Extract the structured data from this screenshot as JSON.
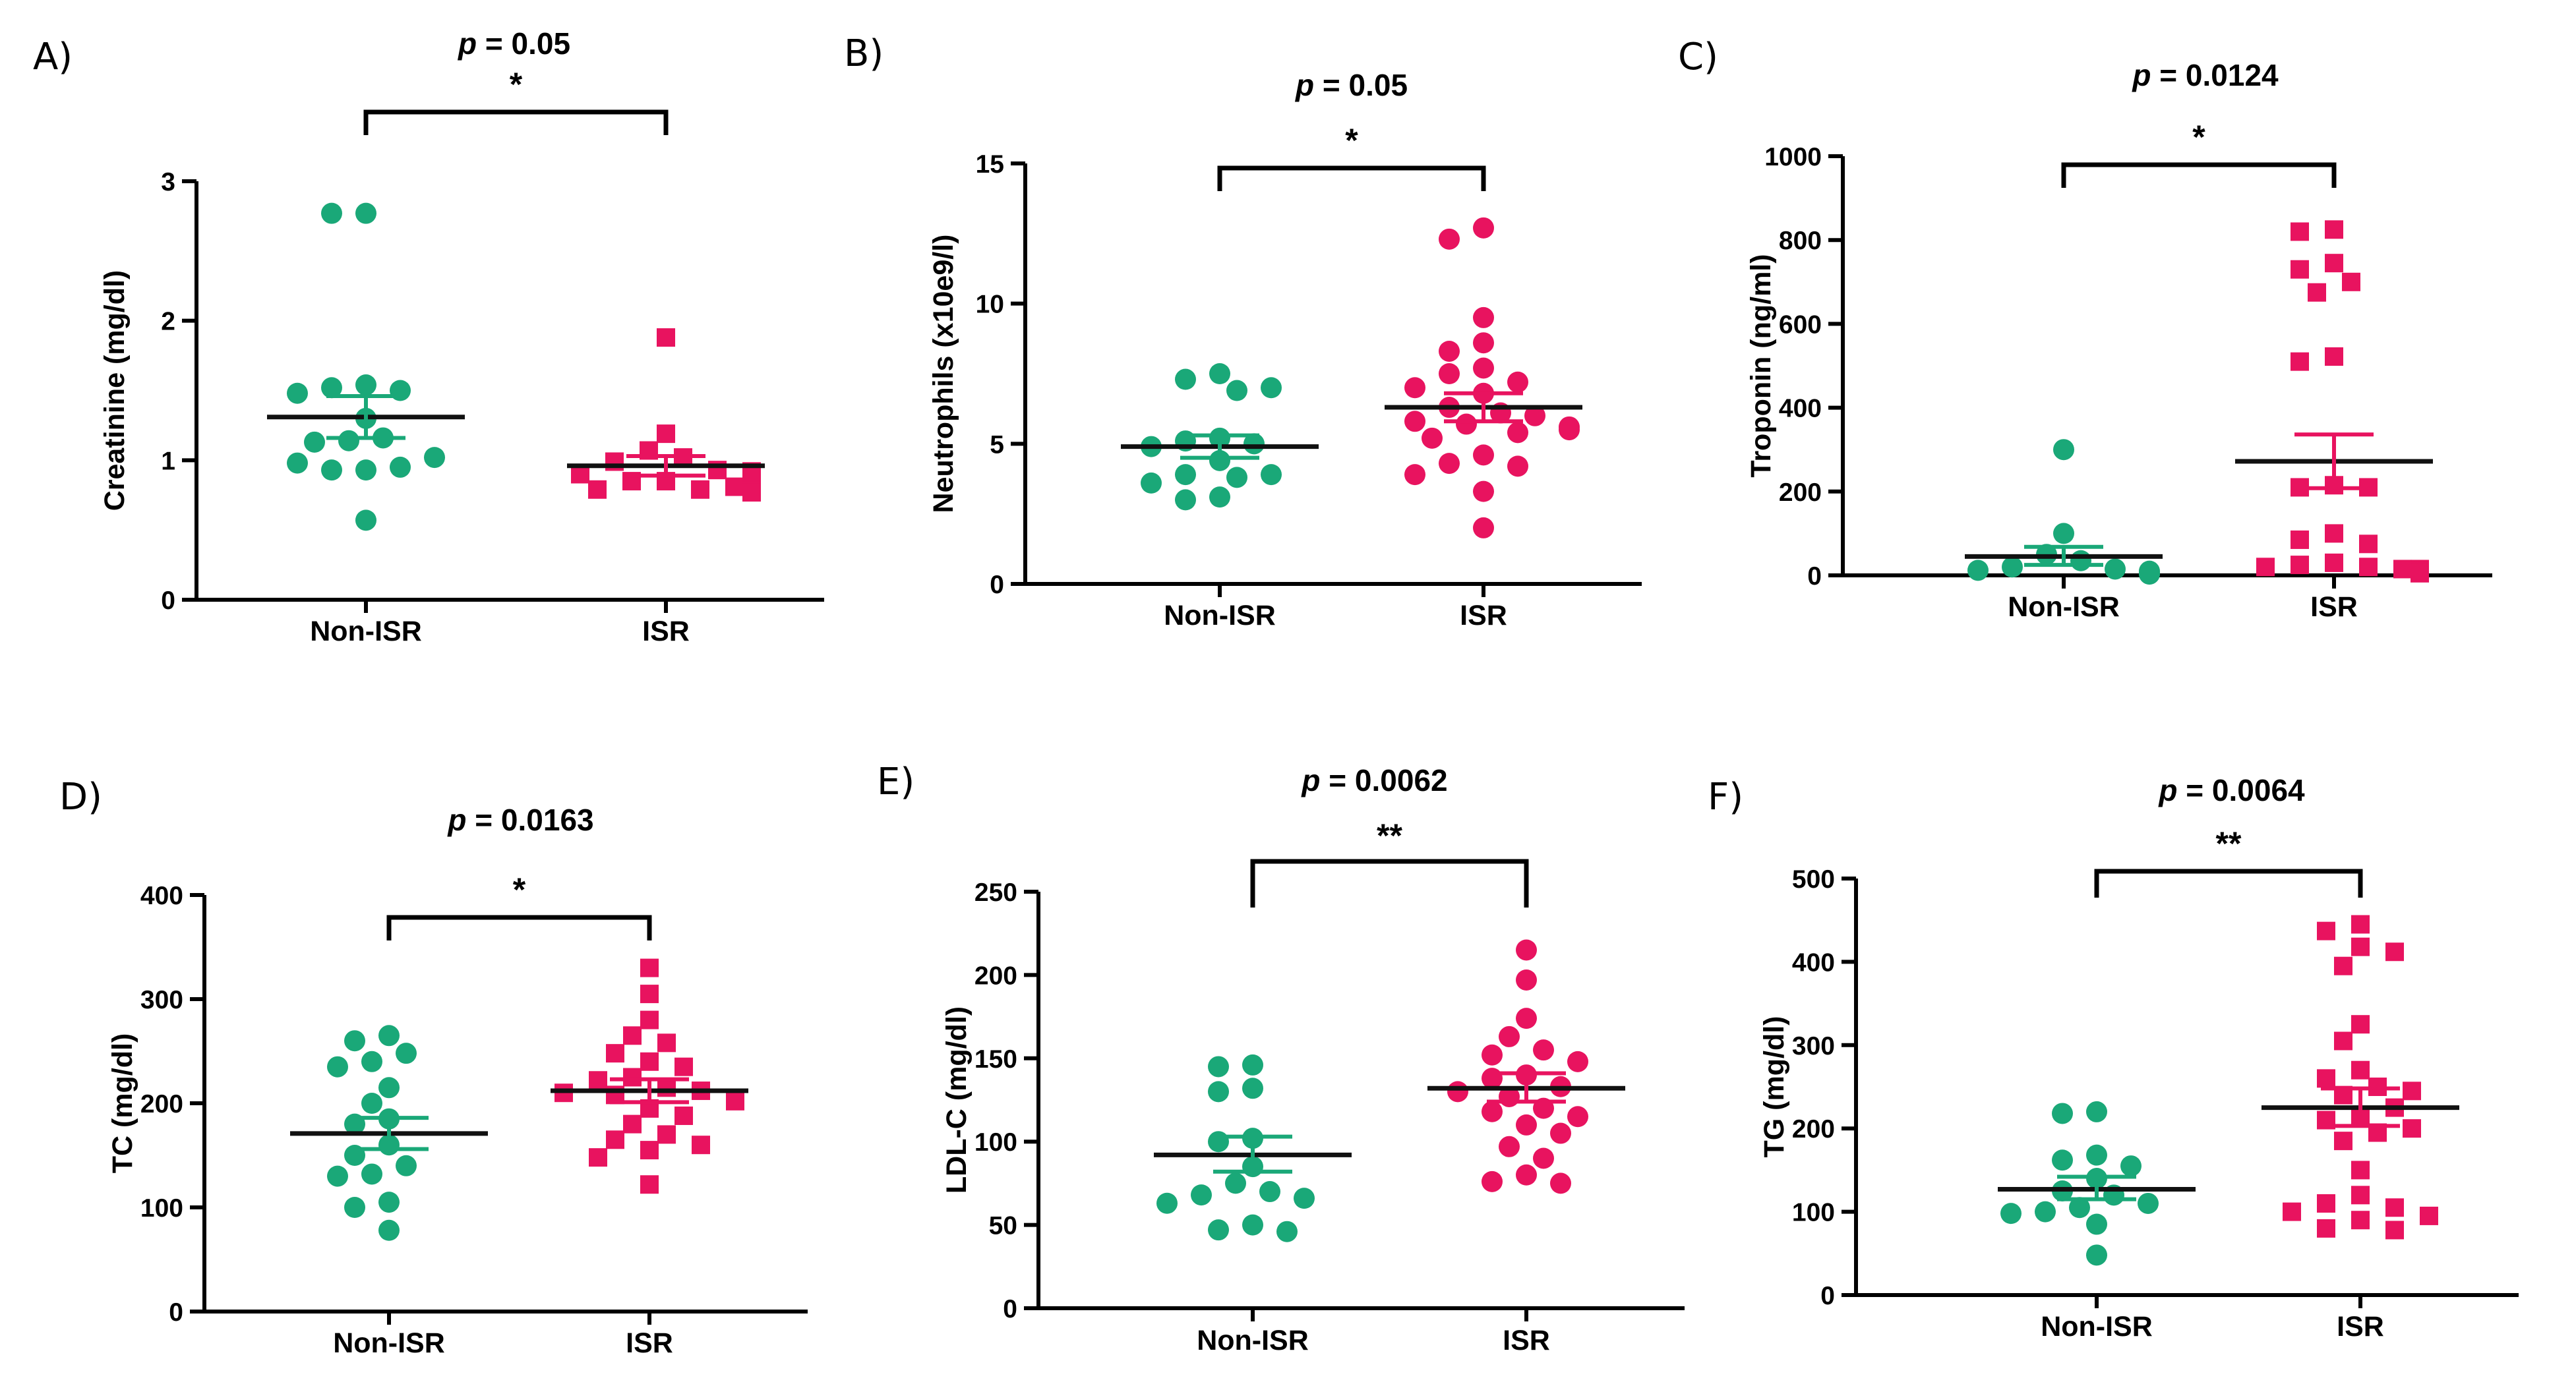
{
  "figure": {
    "colors": {
      "non_isr": "#1aa878",
      "isr": "#e8135f",
      "axis": "#000000"
    }
  },
  "chart_data": [
    {
      "panel": "A)",
      "type": "scatter",
      "title": "p = 0.05",
      "p_prefix": "p",
      "p_value_text": " = 0.05",
      "significance": "*",
      "ylabel": "Creatinine (mg/dl)",
      "xlabel": "",
      "categories": [
        "Non-ISR",
        "ISR"
      ],
      "ylim": [
        0,
        3
      ],
      "yticks": [
        0,
        1,
        2,
        3
      ],
      "ytick_labels": [
        "0",
        "1",
        "2",
        "3"
      ],
      "series": [
        {
          "name": "Non-ISR",
          "marker": "circle",
          "color": "#1aa878",
          "mean": 1.31,
          "sem": [
            1.16,
            1.46
          ],
          "values": [
            2.77,
            2.77,
            1.54,
            1.52,
            1.5,
            1.48,
            1.3,
            1.14,
            1.16,
            1.13,
            0.93,
            0.93,
            0.95,
            0.98,
            1.02,
            0.57
          ]
        },
        {
          "name": "ISR",
          "marker": "square",
          "color": "#e8135f",
          "mean": 0.96,
          "sem": [
            0.89,
            1.03
          ],
          "values": [
            1.88,
            1.19,
            1.07,
            1.02,
            0.99,
            0.93,
            0.85,
            0.85,
            0.79,
            0.79,
            0.81,
            0.81,
            0.77,
            0.79,
            0.82,
            0.9,
            0.92,
            0.78,
            0.77
          ]
        }
      ]
    },
    {
      "panel": "B)",
      "type": "scatter",
      "title": "p = 0.05",
      "p_prefix": "p",
      "p_value_text": " = 0.05",
      "significance": "*",
      "ylabel": "Neutrophils (x10e9/l)",
      "xlabel": "",
      "categories": [
        "Non-ISR",
        "ISR"
      ],
      "ylim": [
        0,
        15
      ],
      "yticks": [
        0,
        5,
        10,
        15
      ],
      "ytick_labels": [
        "0",
        "5",
        "10",
        "15"
      ],
      "series": [
        {
          "name": "Non-ISR",
          "marker": "circle",
          "color": "#1aa878",
          "mean": 4.9,
          "sem": [
            4.5,
            5.3
          ],
          "values": [
            7.5,
            7.3,
            6.9,
            7.0,
            5.2,
            5.1,
            5.0,
            4.9,
            4.4,
            3.9,
            3.8,
            3.9,
            3.6,
            3.1,
            3.0
          ]
        },
        {
          "name": "ISR",
          "marker": "circle",
          "color": "#e8135f",
          "mean": 6.3,
          "sem": [
            5.8,
            6.8
          ],
          "values": [
            12.7,
            12.3,
            9.5,
            8.6,
            8.3,
            7.7,
            7.5,
            7.2,
            7.0,
            6.8,
            6.3,
            6.1,
            6.0,
            5.8,
            5.7,
            5.6,
            5.5,
            5.4,
            5.2,
            4.6,
            4.3,
            4.2,
            3.9,
            3.3,
            2.0
          ]
        }
      ]
    },
    {
      "panel": "C)",
      "type": "scatter",
      "title": "p = 0.0124",
      "p_prefix": "p",
      "p_value_text": " = 0.0124",
      "significance": "*",
      "ylabel": "Troponin (ng/ml)",
      "xlabel": "",
      "categories": [
        "Non-ISR",
        "ISR"
      ],
      "ylim": [
        0,
        1000
      ],
      "yticks": [
        0,
        200,
        400,
        600,
        800,
        1000
      ],
      "ytick_labels": [
        "0",
        "200",
        "400",
        "600",
        "800",
        "1000"
      ],
      "series": [
        {
          "name": "Non-ISR",
          "marker": "circle",
          "color": "#1aa878",
          "mean": 45,
          "sem": [
            25,
            68
          ],
          "values": [
            300,
            100,
            50,
            35,
            20,
            15,
            12,
            10,
            8,
            6,
            5,
            5,
            4,
            3
          ]
        },
        {
          "name": "ISR",
          "marker": "square",
          "color": "#e8135f",
          "mean": 272,
          "sem": [
            208,
            336
          ],
          "values": [
            825,
            820,
            745,
            730,
            700,
            675,
            522,
            510,
            215,
            210,
            210,
            100,
            85,
            75,
            30,
            25,
            20,
            20,
            15,
            15,
            12,
            10,
            10,
            8,
            5
          ]
        }
      ]
    },
    {
      "panel": "D)",
      "type": "scatter",
      "title": "p = 0.0163",
      "p_prefix": "p",
      "p_value_text": " = 0.0163",
      "significance": "*",
      "ylabel": "TC (mg/dl)",
      "xlabel": "",
      "categories": [
        "Non-ISR",
        "ISR"
      ],
      "ylim": [
        0,
        400
      ],
      "yticks": [
        0,
        100,
        200,
        300,
        400
      ],
      "ytick_labels": [
        "0",
        "100",
        "200",
        "300",
        "400"
      ],
      "series": [
        {
          "name": "Non-ISR",
          "marker": "circle",
          "color": "#1aa878",
          "mean": 171,
          "sem": [
            156,
            186
          ],
          "values": [
            265,
            260,
            248,
            240,
            235,
            215,
            200,
            185,
            180,
            160,
            150,
            140,
            132,
            130,
            105,
            100,
            78
          ]
        },
        {
          "name": "ISR",
          "marker": "square",
          "color": "#e8135f",
          "mean": 212,
          "sem": [
            201,
            223
          ],
          "values": [
            330,
            305,
            280,
            265,
            258,
            248,
            240,
            235,
            225,
            222,
            215,
            212,
            210,
            208,
            205,
            202,
            195,
            188,
            180,
            170,
            165,
            160,
            155,
            148,
            122
          ]
        }
      ]
    },
    {
      "panel": "E)",
      "type": "scatter",
      "title": "p = 0.0062",
      "p_prefix": "p",
      "p_value_text": " = 0.0062",
      "significance": "**",
      "ylabel": "LDL-C (mg/dl)",
      "xlabel": "",
      "categories": [
        "Non-ISR",
        "ISR"
      ],
      "ylim": [
        0,
        250
      ],
      "yticks": [
        0,
        50,
        100,
        150,
        200,
        250
      ],
      "ytick_labels": [
        "0",
        "50",
        "100",
        "150",
        "200",
        "250"
      ],
      "series": [
        {
          "name": "Non-ISR",
          "marker": "circle",
          "color": "#1aa878",
          "mean": 92,
          "sem": [
            82,
            103
          ],
          "values": [
            146,
            145,
            132,
            130,
            102,
            100,
            85,
            75,
            70,
            68,
            66,
            63,
            50,
            47,
            46
          ]
        },
        {
          "name": "ISR",
          "marker": "circle",
          "color": "#e8135f",
          "mean": 132,
          "sem": [
            124,
            141
          ],
          "values": [
            215,
            197,
            174,
            163,
            155,
            152,
            148,
            140,
            138,
            133,
            130,
            127,
            120,
            118,
            115,
            110,
            105,
            97,
            90,
            80,
            76,
            75
          ]
        }
      ]
    },
    {
      "panel": "F)",
      "type": "scatter",
      "title": "p = 0.0064",
      "p_prefix": "p",
      "p_value_text": " = 0.0064",
      "significance": "**",
      "ylabel": "TG (mg/dl)",
      "xlabel": "",
      "categories": [
        "Non-ISR",
        "ISR"
      ],
      "ylim": [
        0,
        500
      ],
      "yticks": [
        0,
        100,
        200,
        300,
        400,
        500
      ],
      "ytick_labels": [
        "0",
        "100",
        "200",
        "300",
        "400",
        "500"
      ],
      "series": [
        {
          "name": "Non-ISR",
          "marker": "circle",
          "color": "#1aa878",
          "mean": 127,
          "sem": [
            115,
            142
          ],
          "values": [
            220,
            218,
            168,
            162,
            155,
            140,
            125,
            120,
            110,
            105,
            100,
            98,
            85,
            48
          ]
        },
        {
          "name": "ISR",
          "marker": "square",
          "color": "#e8135f",
          "mean": 225,
          "sem": [
            203,
            248
          ],
          "values": [
            445,
            437,
            418,
            412,
            395,
            325,
            305,
            270,
            260,
            250,
            245,
            240,
            225,
            215,
            210,
            200,
            195,
            185,
            150,
            120,
            110,
            105,
            100,
            95,
            90,
            80,
            78
          ]
        }
      ]
    }
  ]
}
